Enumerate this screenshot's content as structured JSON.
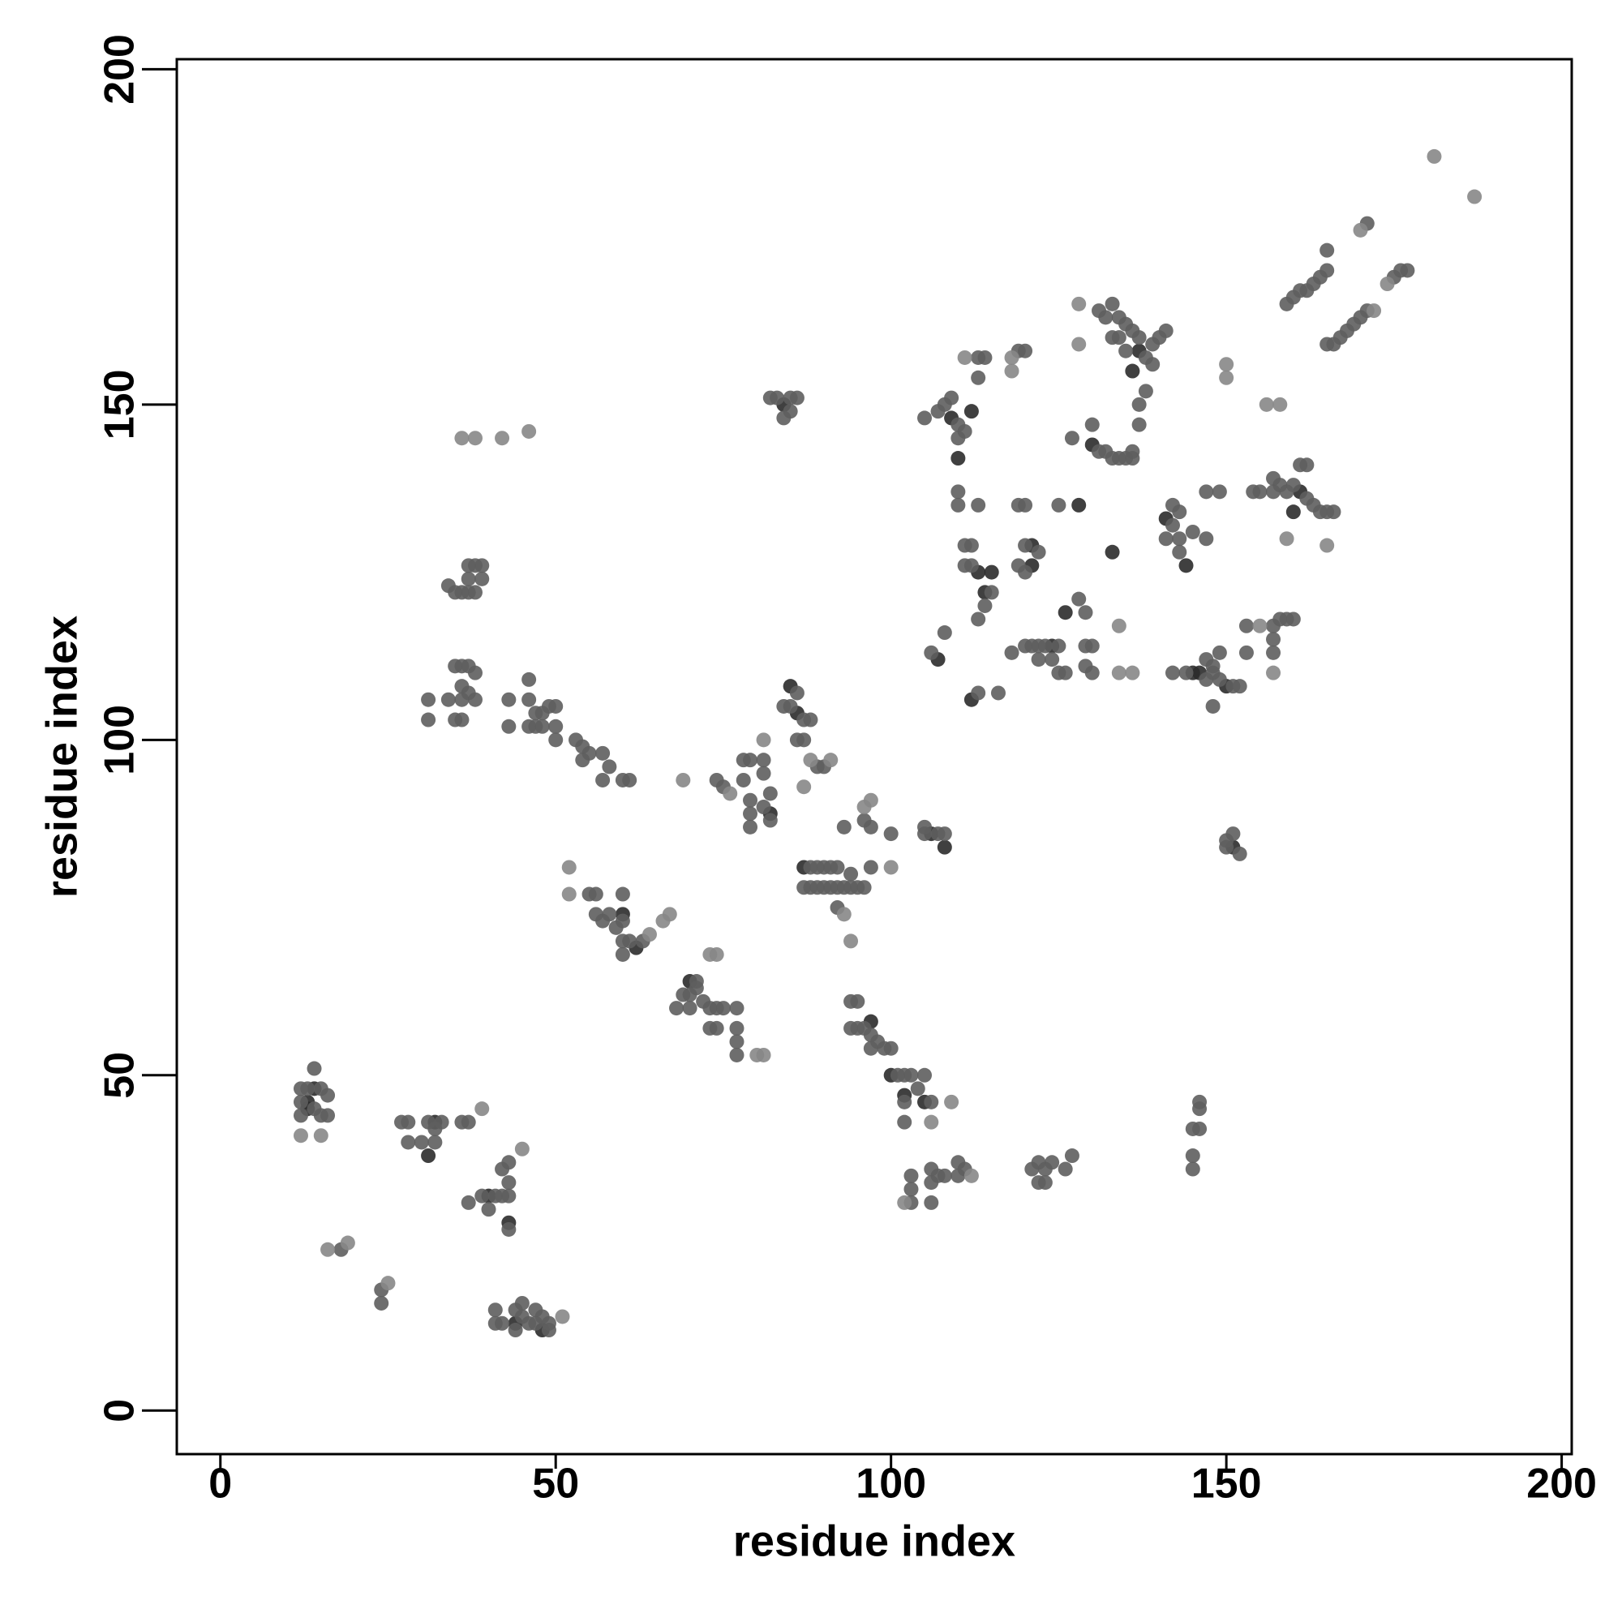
{
  "chart_data": {
    "type": "scatter",
    "xlabel": "residue index",
    "ylabel": "residue index",
    "xlim": [
      -6.5,
      201.5
    ],
    "ylim": [
      -6.5,
      201.5
    ],
    "xticks": [
      0,
      50,
      100,
      150,
      200
    ],
    "yticks": [
      0,
      50,
      100,
      150,
      200
    ],
    "grid": false,
    "series": [
      {
        "color": "#2b2b2b",
        "x": [
          13,
          14,
          13,
          32,
          31,
          40,
          43,
          44,
          48,
          60,
          62,
          70,
          84,
          85,
          86,
          82,
          87,
          97,
          102,
          105,
          109,
          110,
          113,
          115,
          114,
          112,
          121,
          124,
          126,
          130,
          133,
          141,
          144,
          145,
          146,
          150,
          151,
          136,
          137,
          161,
          160,
          107,
          128,
          112,
          121,
          106,
          108,
          100
        ],
        "values": [
          45,
          48,
          46,
          43,
          38,
          32,
          28,
          13,
          12,
          74,
          69,
          64,
          150,
          108,
          104,
          89,
          81,
          58,
          47,
          46,
          148,
          142,
          125,
          125,
          122,
          106,
          126,
          114,
          119,
          144,
          128,
          133,
          126,
          110,
          110,
          108,
          84,
          155,
          158,
          137,
          134,
          112,
          135,
          149,
          129,
          86,
          84,
          50
        ]
      },
      {
        "color": "#5e5e5e",
        "x": [
          12,
          13,
          15,
          16,
          12,
          14,
          15,
          16,
          12,
          14,
          27,
          28,
          28,
          30,
          31,
          33,
          32,
          32,
          36,
          37,
          37,
          39,
          41,
          40,
          42,
          43,
          43,
          43,
          42,
          43,
          18,
          24,
          24,
          41,
          41,
          42,
          44,
          45,
          46,
          47,
          47,
          48,
          49,
          49,
          44,
          45,
          55,
          56,
          56,
          57,
          58,
          59,
          60,
          60,
          60,
          61,
          63,
          60,
          68,
          69,
          70,
          70,
          71,
          71,
          72,
          73,
          74,
          74,
          73,
          77,
          77,
          77,
          77,
          75,
          35,
          36,
          37,
          38,
          37,
          37,
          38,
          39,
          39,
          34,
          35,
          36,
          37,
          38,
          36,
          36,
          37,
          38,
          34,
          35,
          36,
          31,
          31,
          43,
          43,
          46,
          46,
          47,
          48,
          46,
          47,
          48,
          49,
          50,
          50,
          50,
          53,
          54,
          54,
          55,
          57,
          58,
          57,
          60,
          61,
          84,
          85,
          86,
          87,
          88,
          86,
          87,
          89,
          90,
          81,
          81,
          82,
          82,
          81,
          79,
          78,
          78,
          79,
          79,
          79,
          74,
          75,
          83,
          85,
          85,
          86,
          84,
          82,
          88,
          89,
          90,
          91,
          92,
          87,
          88,
          89,
          90,
          91,
          92,
          93,
          94,
          95,
          96,
          94,
          97,
          92,
          93,
          96,
          97,
          100,
          105,
          107,
          105,
          108,
          94,
          95,
          94,
          95,
          96,
          97,
          97,
          98,
          99,
          100,
          101,
          102,
          103,
          102,
          104,
          105,
          106,
          102,
          103,
          103,
          103,
          106,
          106,
          106,
          107,
          108,
          110,
          111,
          110,
          121,
          122,
          122,
          123,
          123,
          124,
          126,
          127,
          145,
          145,
          145,
          146,
          146,
          146,
          150,
          151,
          152,
          150,
          107,
          108,
          110,
          111,
          110,
          109,
          105,
          113,
          114,
          119,
          120,
          113,
          110,
          110,
          111,
          112,
          111,
          112,
          114,
          113,
          115,
          113,
          116,
          113,
          106,
          108,
          119,
          120,
          120,
          122,
          119,
          120,
          118,
          120,
          121,
          122,
          123,
          125,
          122,
          124,
          125,
          126,
          129,
          130,
          129,
          130,
          128,
          129,
          125,
          127,
          130,
          131,
          132,
          133,
          134,
          135,
          136,
          136,
          133,
          134,
          135,
          136,
          137,
          138,
          139,
          139,
          140,
          141,
          138,
          137,
          137,
          133,
          134,
          135,
          131,
          132,
          142,
          142,
          141,
          143,
          145,
          143,
          147,
          143,
          142,
          144,
          147,
          148,
          149,
          151,
          148,
          147,
          148,
          149,
          152,
          147,
          149,
          154,
          155,
          157,
          158,
          159,
          160,
          162,
          163,
          164,
          165,
          166,
          161,
          162,
          157,
          158,
          159,
          160,
          157,
          157,
          153,
          153,
          159,
          160,
          161,
          162,
          163,
          164,
          165,
          165,
          165,
          166,
          167,
          168,
          169,
          170,
          171,
          171,
          175,
          176,
          177,
          157
        ],
        "values": [
          48,
          48,
          48,
          47,
          46,
          45,
          44,
          44,
          44,
          51,
          43,
          43,
          40,
          40,
          43,
          43,
          42,
          40,
          43,
          43,
          31,
          32,
          32,
          30,
          32,
          32,
          34,
          37,
          36,
          27,
          24,
          18,
          16,
          13,
          15,
          13,
          15,
          14,
          13,
          13,
          15,
          14,
          13,
          12,
          12,
          16,
          77,
          77,
          74,
          73,
          74,
          72,
          73,
          77,
          70,
          70,
          70,
          68,
          60,
          62,
          62,
          60,
          64,
          63,
          61,
          60,
          60,
          57,
          57,
          60,
          57,
          55,
          53,
          60,
          122,
          122,
          122,
          122,
          124,
          126,
          126,
          126,
          124,
          123,
          111,
          111,
          111,
          110,
          108,
          106,
          107,
          106,
          106,
          103,
          103,
          106,
          103,
          106,
          102,
          109,
          106,
          104,
          104,
          102,
          102,
          102,
          105,
          105,
          102,
          100,
          100,
          99,
          97,
          98,
          98,
          96,
          94,
          94,
          94,
          105,
          105,
          107,
          103,
          103,
          100,
          100,
          96,
          96,
          97,
          95,
          92,
          88,
          90,
          97,
          97,
          94,
          91,
          89,
          87,
          94,
          93,
          151,
          149,
          151,
          151,
          148,
          151,
          81,
          81,
          81,
          81,
          81,
          78,
          78,
          78,
          78,
          78,
          78,
          78,
          78,
          78,
          78,
          80,
          81,
          75,
          87,
          88,
          87,
          86,
          86,
          86,
          87,
          86,
          61,
          61,
          57,
          57,
          57,
          56,
          54,
          55,
          54,
          54,
          50,
          50,
          50,
          46,
          48,
          50,
          46,
          43,
          31,
          33,
          35,
          31,
          34,
          36,
          35,
          35,
          35,
          36,
          37,
          36,
          37,
          34,
          34,
          36,
          37,
          36,
          38,
          36,
          38,
          42,
          42,
          45,
          46,
          84,
          86,
          83,
          85,
          149,
          150,
          147,
          146,
          145,
          151,
          148,
          157,
          157,
          158,
          158,
          154,
          137,
          135,
          129,
          129,
          126,
          126,
          120,
          118,
          122,
          135,
          107,
          107,
          113,
          116,
          135,
          135,
          129,
          128,
          126,
          125,
          113,
          114,
          114,
          114,
          114,
          114,
          112,
          112,
          110,
          110,
          114,
          114,
          111,
          110,
          121,
          119,
          135,
          145,
          147,
          143,
          143,
          142,
          142,
          142,
          142,
          143,
          165,
          163,
          162,
          161,
          160,
          157,
          156,
          159,
          160,
          161,
          152,
          150,
          147,
          160,
          160,
          158,
          164,
          163,
          135,
          132,
          130,
          130,
          131,
          128,
          130,
          134,
          110,
          110,
          109,
          110,
          109,
          108,
          111,
          112,
          105,
          113,
          108,
          137,
          137,
          137,
          137,
          137,
          138,
          137,
          138,
          136,
          135,
          134,
          134,
          134,
          141,
          141,
          117,
          118,
          118,
          118,
          115,
          113,
          117,
          113,
          165,
          166,
          167,
          167,
          168,
          169,
          170,
          173,
          159,
          159,
          160,
          161,
          162,
          163,
          164,
          177,
          169,
          170,
          170,
          139
        ]
      },
      {
        "color": "#878787",
        "x": [
          38,
          36,
          42,
          46,
          52,
          52,
          64,
          66,
          67,
          69,
          76,
          81,
          88,
          91,
          87,
          93,
          94,
          100,
          96,
          97,
          109,
          106,
          102,
          112,
          111,
          118,
          118,
          128,
          128,
          181,
          187,
          170,
          174,
          172,
          155,
          157,
          159,
          165,
          150,
          150,
          156,
          158,
          134,
          134,
          136,
          45,
          39,
          16,
          19,
          25,
          51,
          80,
          81,
          73,
          74,
          15,
          12
        ],
        "values": [
          145,
          145,
          145,
          146,
          81,
          77,
          71,
          73,
          74,
          94,
          92,
          100,
          97,
          97,
          93,
          74,
          70,
          81,
          90,
          91,
          46,
          43,
          31,
          35,
          157,
          157,
          155,
          165,
          159,
          187,
          181,
          176,
          168,
          164,
          117,
          110,
          130,
          129,
          156,
          154,
          150,
          150,
          117,
          110,
          110,
          39,
          45,
          24,
          25,
          19,
          14,
          53,
          53,
          68,
          68,
          41,
          41
        ]
      }
    ]
  }
}
